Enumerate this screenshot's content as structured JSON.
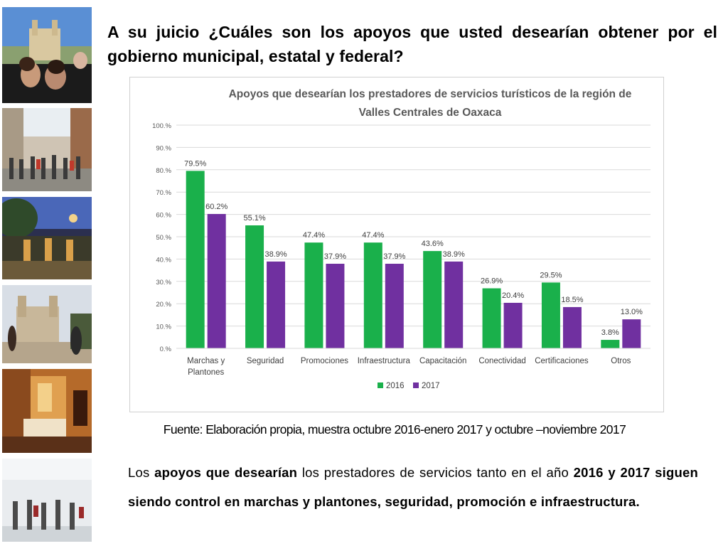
{
  "slide": {
    "question": "A su juicio ¿Cuáles son los apoyos que usted desearían obtener por el gobierno municipal, estatal y federal?",
    "source": "Fuente: Elaboración propia, muestra octubre 2016-enero 2017 y octubre –noviembre 2017",
    "paragraph": {
      "p1": "Los ",
      "b1": "apoyos que desearían",
      "p2": " los prestadores de servicios tanto en el año ",
      "b2": "2016 y 2017 siguen siendo control en marchas y plantones, seguridad, promoción  e infraestructura."
    }
  },
  "photos": [
    {
      "icon": "church-pool-photo"
    },
    {
      "icon": "street-crowd-photo"
    },
    {
      "icon": "garden-terrace-photo"
    },
    {
      "icon": "santo-domingo-church-photo"
    },
    {
      "icon": "hotel-room-photo"
    },
    {
      "icon": "airport-travellers-photo"
    }
  ],
  "chart_data": {
    "type": "bar",
    "title_line1": "Apoyos que desearían los prestadores de servicios turísticos de la región de",
    "title_line2": "Valles Centrales de Oaxaca",
    "categories": [
      [
        "Marchas y",
        "Plantones"
      ],
      [
        "Seguridad"
      ],
      [
        "Promociones"
      ],
      [
        "Infraestructura"
      ],
      [
        "Capacitación"
      ],
      [
        "Conectividad"
      ],
      [
        "Certificaciones"
      ],
      [
        "Otros"
      ]
    ],
    "series": [
      {
        "name": "2016",
        "color": "#1ab04b",
        "values": [
          79.5,
          55.1,
          47.4,
          47.4,
          43.6,
          26.9,
          29.5,
          3.8
        ]
      },
      {
        "name": "2017",
        "color": "#7030a0",
        "values": [
          60.2,
          38.9,
          37.9,
          37.9,
          38.9,
          20.4,
          18.5,
          13.0
        ]
      }
    ],
    "ylim": [
      0,
      100
    ],
    "yticks": [
      "0.%",
      "10.%",
      "20.%",
      "30.%",
      "40.%",
      "50.%",
      "60.%",
      "70.%",
      "80.%",
      "90.%",
      "100.%"
    ],
    "value_labels": [
      [
        "79.5%",
        "55.1%",
        "47.4%",
        "47.4%",
        "43.6%",
        "26.9%",
        "29.5%",
        "3.8%"
      ],
      [
        "60.2%",
        "38.9%",
        "37.9%",
        "37.9%",
        "38.9%",
        "20.4%",
        "18.5%",
        "13.0%"
      ]
    ],
    "grid": true,
    "legend": "bottom-center"
  }
}
